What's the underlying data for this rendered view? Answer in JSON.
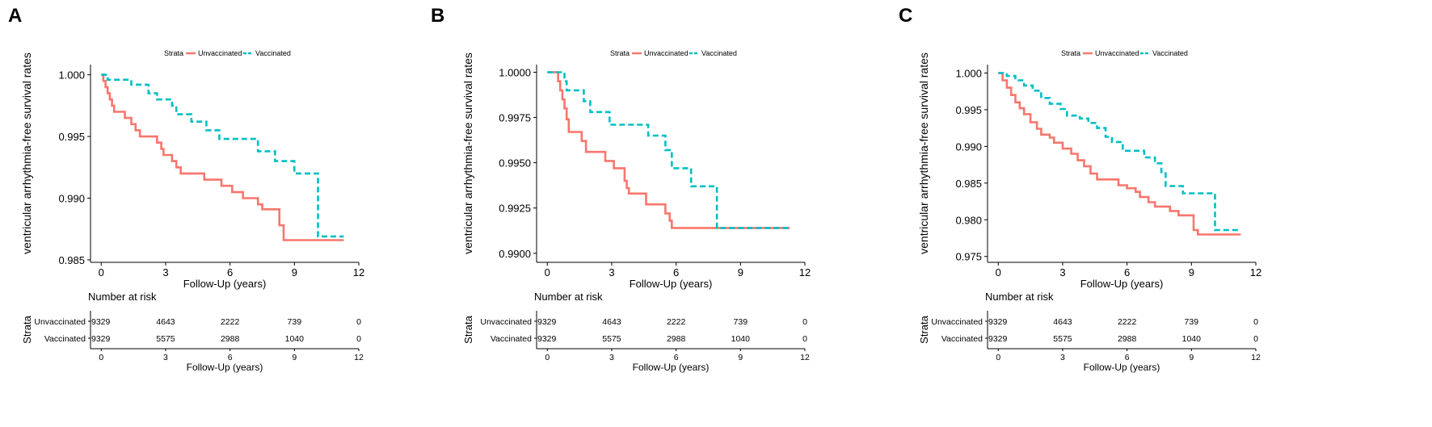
{
  "panels": [
    {
      "letter": "A",
      "chart_data": {
        "type": "line",
        "title": "",
        "xlabel": "Follow-Up (years)",
        "ylabel": "ventricular arrhythmia-free survival rates",
        "xlim": [
          -0.5,
          12
        ],
        "ylim": [
          0.9848,
          1.0005
        ],
        "xticks": [
          0,
          3,
          6,
          9,
          12
        ],
        "yticks": [
          0.985,
          0.99,
          0.995,
          1.0
        ],
        "ytick_labels": [
          "0.985",
          "0.990",
          "0.995",
          "1.000"
        ],
        "legend": {
          "title": "Strata",
          "position": "top",
          "entries": [
            "Unvaccinated",
            "Vaccinated"
          ]
        },
        "series": [
          {
            "name": "Unvaccinated",
            "color": "#F8766D",
            "style": "solid",
            "points": [
              [
                0,
                1.0
              ],
              [
                0.1,
                0.9995
              ],
              [
                0.2,
                0.999
              ],
              [
                0.3,
                0.9985
              ],
              [
                0.4,
                0.998
              ],
              [
                0.5,
                0.9975
              ],
              [
                0.6,
                0.997
              ],
              [
                1.0,
                0.997
              ],
              [
                1.1,
                0.9965
              ],
              [
                1.4,
                0.996
              ],
              [
                1.6,
                0.9955
              ],
              [
                1.8,
                0.995
              ],
              [
                2.5,
                0.995
              ],
              [
                2.6,
                0.9945
              ],
              [
                2.8,
                0.994
              ],
              [
                2.9,
                0.9935
              ],
              [
                3.2,
                0.9935
              ],
              [
                3.3,
                0.993
              ],
              [
                3.5,
                0.9925
              ],
              [
                3.7,
                0.992
              ],
              [
                4.6,
                0.992
              ],
              [
                4.8,
                0.9915
              ],
              [
                5.4,
                0.9915
              ],
              [
                5.6,
                0.991
              ],
              [
                6.0,
                0.991
              ],
              [
                6.1,
                0.9905
              ],
              [
                6.6,
                0.99
              ],
              [
                7.2,
                0.99
              ],
              [
                7.3,
                0.9895
              ],
              [
                7.5,
                0.9891
              ],
              [
                8.2,
                0.9891
              ],
              [
                8.3,
                0.9878
              ],
              [
                8.5,
                0.9866
              ],
              [
                11.3,
                0.9866
              ]
            ]
          },
          {
            "name": "Vaccinated",
            "color": "#00BFC4",
            "style": "dashed",
            "points": [
              [
                0,
                1.0
              ],
              [
                0.3,
                0.9996
              ],
              [
                1.2,
                0.9996
              ],
              [
                1.4,
                0.9992
              ],
              [
                2.2,
                0.9985
              ],
              [
                2.6,
                0.998
              ],
              [
                3.3,
                0.9975
              ],
              [
                3.5,
                0.9968
              ],
              [
                4.0,
                0.9968
              ],
              [
                4.2,
                0.9962
              ],
              [
                4.7,
                0.9962
              ],
              [
                4.9,
                0.9955
              ],
              [
                5.5,
                0.9948
              ],
              [
                7.1,
                0.9948
              ],
              [
                7.3,
                0.9938
              ],
              [
                8.0,
                0.9938
              ],
              [
                8.1,
                0.993
              ],
              [
                8.9,
                0.993
              ],
              [
                9.0,
                0.992
              ],
              [
                10.0,
                0.992
              ],
              [
                10.1,
                0.9869
              ],
              [
                11.3,
                0.9869
              ]
            ]
          }
        ]
      },
      "risk_table": {
        "title": "Number at risk",
        "y_title": "Strata",
        "xlabel": "Follow-Up (years)",
        "xticks": [
          0,
          3,
          6,
          9,
          12
        ],
        "rows": [
          {
            "label": "Unvaccinated",
            "color": "#F8766D",
            "values": [
              "9329",
              "4643",
              "2222",
              "739",
              "0"
            ]
          },
          {
            "label": "Vaccinated",
            "color": "#00BFC4",
            "values": [
              "9329",
              "5575",
              "2988",
              "1040",
              "0"
            ]
          }
        ]
      }
    },
    {
      "letter": "B",
      "chart_data": {
        "type": "line",
        "title": "",
        "xlabel": "Follow-Up (years)",
        "ylabel": "ventricular arrhythmia-free survival rates",
        "xlim": [
          -0.5,
          12
        ],
        "ylim": [
          0.9895,
          1.0002
        ],
        "xticks": [
          0,
          3,
          6,
          9,
          12
        ],
        "yticks": [
          0.99,
          0.9925,
          0.995,
          0.9975,
          1.0
        ],
        "ytick_labels": [
          "0.9900",
          "0.9925",
          "0.9950",
          "0.9975",
          "1.0000"
        ],
        "legend": {
          "title": "Strata",
          "position": "top",
          "entries": [
            "Unvaccinated",
            "Vaccinated"
          ]
        },
        "series": [
          {
            "name": "Unvaccinated",
            "color": "#F8766D",
            "style": "solid",
            "points": [
              [
                0,
                1.0
              ],
              [
                0.4,
                1.0
              ],
              [
                0.5,
                0.9995
              ],
              [
                0.6,
                0.999
              ],
              [
                0.7,
                0.9985
              ],
              [
                0.8,
                0.998
              ],
              [
                0.9,
                0.9974
              ],
              [
                1.0,
                0.9967
              ],
              [
                1.5,
                0.9967
              ],
              [
                1.6,
                0.9962
              ],
              [
                1.8,
                0.9956
              ],
              [
                2.5,
                0.9956
              ],
              [
                2.7,
                0.9951
              ],
              [
                3.0,
                0.9951
              ],
              [
                3.1,
                0.9947
              ],
              [
                3.5,
                0.9947
              ],
              [
                3.6,
                0.994
              ],
              [
                3.7,
                0.9936
              ],
              [
                3.8,
                0.9933
              ],
              [
                4.5,
                0.9933
              ],
              [
                4.6,
                0.9927
              ],
              [
                5.4,
                0.9927
              ],
              [
                5.5,
                0.9922
              ],
              [
                5.7,
                0.9918
              ],
              [
                5.8,
                0.9914
              ],
              [
                11.3,
                0.9914
              ]
            ]
          },
          {
            "name": "Vaccinated",
            "color": "#00BFC4",
            "style": "dashed",
            "points": [
              [
                0,
                1.0
              ],
              [
                0.8,
                0.9995
              ],
              [
                0.9,
                0.999
              ],
              [
                1.6,
                0.999
              ],
              [
                1.7,
                0.9984
              ],
              [
                2.0,
                0.9978
              ],
              [
                2.8,
                0.9978
              ],
              [
                2.9,
                0.9971
              ],
              [
                4.6,
                0.9971
              ],
              [
                4.7,
                0.9965
              ],
              [
                5.4,
                0.9965
              ],
              [
                5.5,
                0.9957
              ],
              [
                5.8,
                0.9947
              ],
              [
                6.6,
                0.9947
              ],
              [
                6.7,
                0.9937
              ],
              [
                7.8,
                0.9937
              ],
              [
                7.9,
                0.9914
              ],
              [
                11.3,
                0.9914
              ]
            ]
          }
        ]
      },
      "risk_table": {
        "title": "Number at risk",
        "y_title": "Strata",
        "xlabel": "Follow-Up (years)",
        "xticks": [
          0,
          3,
          6,
          9,
          12
        ],
        "rows": [
          {
            "label": "Unvaccinated",
            "color": "#F8766D",
            "values": [
              "9329",
              "4643",
              "2222",
              "739",
              "0"
            ]
          },
          {
            "label": "Vaccinated",
            "color": "#00BFC4",
            "values": [
              "9329",
              "5575",
              "2988",
              "1040",
              "0"
            ]
          }
        ]
      }
    },
    {
      "letter": "C",
      "chart_data": {
        "type": "line",
        "title": "",
        "xlabel": "Follow-Up (years)",
        "ylabel": "ventricular arrhythmia-free survival rates",
        "xlim": [
          -0.5,
          12
        ],
        "ylim": [
          0.9742,
          1.0006
        ],
        "xticks": [
          0,
          3,
          6,
          9,
          12
        ],
        "yticks": [
          0.975,
          0.98,
          0.985,
          0.99,
          0.995,
          1.0
        ],
        "ytick_labels": [
          "0.975",
          "0.980",
          "0.985",
          "0.990",
          "0.995",
          "1.000"
        ],
        "legend": {
          "title": "Strata",
          "position": "top",
          "entries": [
            "Unvaccinated",
            "Vaccinated"
          ]
        },
        "series": [
          {
            "name": "Unvaccinated",
            "color": "#F8766D",
            "style": "solid",
            "points": [
              [
                0,
                1.0
              ],
              [
                0.2,
                0.999
              ],
              [
                0.4,
                0.998
              ],
              [
                0.6,
                0.997
              ],
              [
                0.8,
                0.996
              ],
              [
                1.0,
                0.9952
              ],
              [
                1.2,
                0.9944
              ],
              [
                1.5,
                0.9933
              ],
              [
                1.8,
                0.9924
              ],
              [
                2.0,
                0.9916
              ],
              [
                2.4,
                0.9912
              ],
              [
                2.6,
                0.9905
              ],
              [
                3.0,
                0.9897
              ],
              [
                3.4,
                0.989
              ],
              [
                3.7,
                0.9881
              ],
              [
                4.0,
                0.9873
              ],
              [
                4.3,
                0.9863
              ],
              [
                4.6,
                0.9855
              ],
              [
                5.4,
                0.9855
              ],
              [
                5.6,
                0.9847
              ],
              [
                6.0,
                0.9843
              ],
              [
                6.4,
                0.9838
              ],
              [
                6.6,
                0.9831
              ],
              [
                7.0,
                0.9824
              ],
              [
                7.3,
                0.9818
              ],
              [
                7.8,
                0.9818
              ],
              [
                8.0,
                0.9812
              ],
              [
                8.4,
                0.9806
              ],
              [
                9.0,
                0.9806
              ],
              [
                9.1,
                0.9786
              ],
              [
                9.3,
                0.978
              ],
              [
                11.3,
                0.978
              ]
            ]
          },
          {
            "name": "Vaccinated",
            "color": "#00BFC4",
            "style": "dashed",
            "points": [
              [
                0,
                1.0
              ],
              [
                0.4,
                0.9996
              ],
              [
                0.8,
                0.999
              ],
              [
                1.2,
                0.9983
              ],
              [
                1.6,
                0.9976
              ],
              [
                2.0,
                0.9966
              ],
              [
                2.4,
                0.9958
              ],
              [
                2.9,
                0.9951
              ],
              [
                3.2,
                0.9942
              ],
              [
                3.8,
                0.9938
              ],
              [
                4.2,
                0.9932
              ],
              [
                4.6,
                0.9925
              ],
              [
                5.0,
                0.9913
              ],
              [
                5.3,
                0.9906
              ],
              [
                5.8,
                0.9894
              ],
              [
                6.6,
                0.9894
              ],
              [
                6.8,
                0.9885
              ],
              [
                7.3,
                0.9877
              ],
              [
                7.6,
                0.9865
              ],
              [
                7.8,
                0.9846
              ],
              [
                8.4,
                0.9846
              ],
              [
                8.6,
                0.9836
              ],
              [
                10.0,
                0.9836
              ],
              [
                10.1,
                0.9786
              ],
              [
                11.3,
                0.9786
              ]
            ]
          }
        ]
      },
      "risk_table": {
        "title": "Number at risk",
        "y_title": "Strata",
        "xlabel": "Follow-Up (years)",
        "xticks": [
          0,
          3,
          6,
          9,
          12
        ],
        "rows": [
          {
            "label": "Unvaccinated",
            "color": "#F8766D",
            "values": [
              "9329",
              "4643",
              "2222",
              "739",
              "0"
            ]
          },
          {
            "label": "Vaccinated",
            "color": "#00BFC4",
            "values": [
              "9329",
              "5575",
              "2988",
              "1040",
              "0"
            ]
          }
        ]
      }
    }
  ]
}
